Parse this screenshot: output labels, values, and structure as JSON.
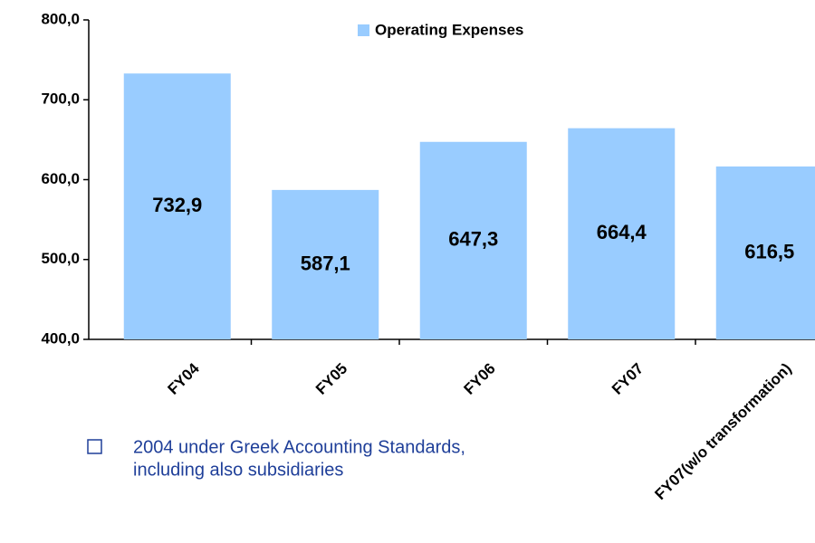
{
  "chart_data": {
    "type": "bar",
    "legend": "Operating Expenses",
    "categories": [
      "FY04",
      "FY05",
      "FY06",
      "FY07",
      "FY07(w/o transformation)"
    ],
    "values": [
      732.9,
      587.1,
      647.3,
      664.4,
      616.5
    ],
    "value_labels": [
      "732,9",
      "587,1",
      "647,3",
      "664,4",
      "616,5"
    ],
    "color": "#99ccff",
    "ylim": [
      400,
      800
    ],
    "yticks": [
      {
        "value": 400,
        "label": "400,0"
      },
      {
        "value": 500,
        "label": "500,0"
      },
      {
        "value": 600,
        "label": "600,0"
      },
      {
        "value": 700,
        "label": "700,0"
      },
      {
        "value": 800,
        "label": "800,0"
      }
    ],
    "grid": false
  },
  "notes": [
    "2004 under Greek Accounting Standards,",
    "including also subsidiaries"
  ]
}
